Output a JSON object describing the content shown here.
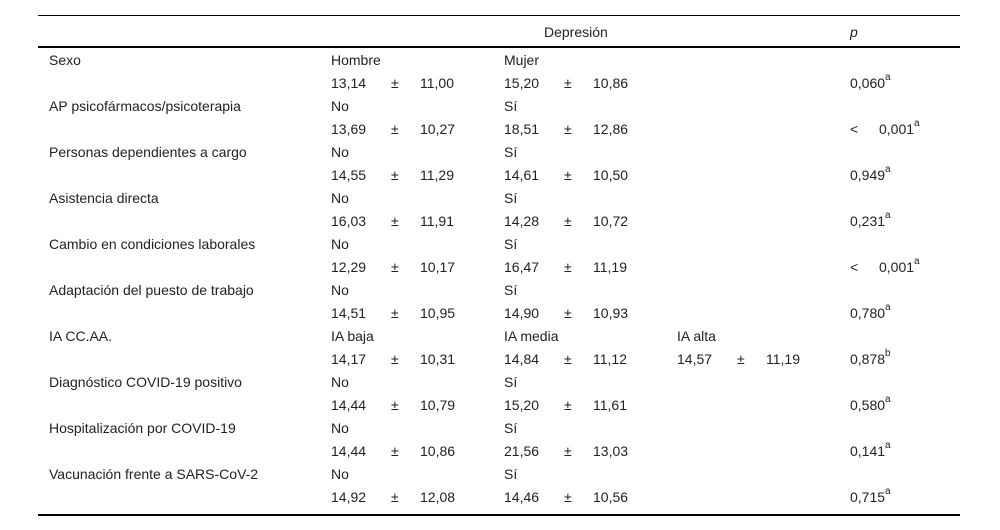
{
  "header": {
    "group_title": "Depresión",
    "p_label": "p"
  },
  "rows": [
    {
      "variable": "Sexo",
      "groups": [
        "Hombre",
        "Mujer"
      ],
      "stats": [
        [
          "13,14",
          "±",
          "11,00"
        ],
        [
          "15,20",
          "±",
          "10,86"
        ]
      ],
      "p_prefix": "",
      "p": "0,060",
      "p_sup": "a"
    },
    {
      "variable": "AP psicofármacos/psicoterapia",
      "groups": [
        "No",
        "Sí"
      ],
      "stats": [
        [
          "13,69",
          "±",
          "10,27"
        ],
        [
          "18,51",
          "±",
          "12,86"
        ]
      ],
      "p_prefix": "<",
      "p": "0,001",
      "p_sup": "a"
    },
    {
      "variable": "Personas dependientes a cargo",
      "groups": [
        "No",
        "Sí"
      ],
      "stats": [
        [
          "14,55",
          "±",
          "11,29"
        ],
        [
          "14,61",
          "±",
          "10,50"
        ]
      ],
      "p_prefix": "",
      "p": "0,949",
      "p_sup": "a"
    },
    {
      "variable": "Asistencia directa",
      "groups": [
        "No",
        "Sí"
      ],
      "stats": [
        [
          "16,03",
          "±",
          "11,91"
        ],
        [
          "14,28",
          "±",
          "10,72"
        ]
      ],
      "p_prefix": "",
      "p": "0,231",
      "p_sup": "a"
    },
    {
      "variable": "Cambio en condiciones laborales",
      "groups": [
        "No",
        "Sí"
      ],
      "stats": [
        [
          "12,29",
          "±",
          "10,17"
        ],
        [
          "16,47",
          "±",
          "11,19"
        ]
      ],
      "p_prefix": "<",
      "p": "0,001",
      "p_sup": "a"
    },
    {
      "variable": "Adaptación del puesto de trabajo",
      "groups": [
        "No",
        "Sí"
      ],
      "stats": [
        [
          "14,51",
          "±",
          "10,95"
        ],
        [
          "14,90",
          "±",
          "10,93"
        ]
      ],
      "p_prefix": "",
      "p": "0,780",
      "p_sup": "a"
    },
    {
      "variable": "IA CC.AA.",
      "groups": [
        "IA baja",
        "IA media",
        "IA alta"
      ],
      "stats": [
        [
          "14,17",
          "±",
          "10,31"
        ],
        [
          "14,84",
          "±",
          "11,12"
        ],
        [
          "14,57",
          "±",
          "11,19"
        ]
      ],
      "p_prefix": "",
      "p": "0,878",
      "p_sup": "b"
    },
    {
      "variable": "Diagnóstico COVID-19 positivo",
      "groups": [
        "No",
        "Sí"
      ],
      "stats": [
        [
          "14,44",
          "±",
          "10,79"
        ],
        [
          "15,20",
          "±",
          "11,61"
        ]
      ],
      "p_prefix": "",
      "p": "0,580",
      "p_sup": "a"
    },
    {
      "variable": "Hospitalización por COVID-19",
      "groups": [
        "No",
        "Sí"
      ],
      "stats": [
        [
          "14,44",
          "±",
          "10,86"
        ],
        [
          "21,56",
          "±",
          "13,03"
        ]
      ],
      "p_prefix": "",
      "p": "0,141",
      "p_sup": "a"
    },
    {
      "variable": "Vacunación frente a SARS-CoV-2",
      "groups": [
        "No",
        "Sí"
      ],
      "stats": [
        [
          "14,92",
          "±",
          "12,08"
        ],
        [
          "14,46",
          "±",
          "10,56"
        ]
      ],
      "p_prefix": "",
      "p": "0,715",
      "p_sup": "a"
    }
  ]
}
